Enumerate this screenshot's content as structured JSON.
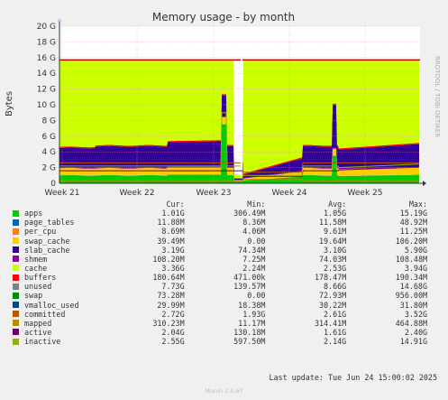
{
  "chart_data": {
    "type": "area",
    "title": "Memory usage - by month",
    "ylabel": "Bytes",
    "side_text": "RRDTOOL / TOBI OETIKER",
    "x_categories": [
      "Week 21",
      "Week 22",
      "Week 23",
      "Week 24",
      "Week 25"
    ],
    "y_ticks": [
      "0",
      "2 G",
      "4 G",
      "6 G",
      "8 G",
      "10 G",
      "12 G",
      "14 G",
      "16 G",
      "18 G",
      "20 G"
    ],
    "ylim": [
      0,
      20
    ],
    "y_unit": "G",
    "grid": true,
    "stacked": true,
    "legend_placement": "bottom",
    "legend_headers": [
      "Cur:",
      "Min:",
      "Avg:",
      "Max:"
    ],
    "series": [
      {
        "name": "apps",
        "color": "#00cc00",
        "cur": "1.01G",
        "min": "306.49M",
        "avg": "1.05G",
        "max": "15.19G"
      },
      {
        "name": "page_tables",
        "color": "#0066b3",
        "cur": "11.88M",
        "min": "8.36M",
        "avg": "11.58M",
        "max": "48.92M"
      },
      {
        "name": "per_cpu",
        "color": "#ff8000",
        "cur": "8.69M",
        "min": "4.06M",
        "avg": "9.61M",
        "max": "11.25M"
      },
      {
        "name": "swap_cache",
        "color": "#ffcc00",
        "cur": "39.49M",
        "min": "0.00",
        "avg": "19.64M",
        "max": "106.20M"
      },
      {
        "name": "slab_cache",
        "color": "#330099",
        "cur": "3.19G",
        "min": "74.34M",
        "avg": "3.10G",
        "max": "5.90G"
      },
      {
        "name": "shmem",
        "color": "#990099",
        "cur": "108.20M",
        "min": "7.25M",
        "avg": "74.03M",
        "max": "108.48M"
      },
      {
        "name": "cache",
        "color": "#ccff00",
        "cur": "3.36G",
        "min": "2.24M",
        "avg": "2.53G",
        "max": "3.94G"
      },
      {
        "name": "buffers",
        "color": "#ff0000",
        "cur": "180.64M",
        "min": "471.00k",
        "avg": "178.47M",
        "max": "190.34M"
      },
      {
        "name": "unused",
        "color": "#808080",
        "cur": "7.73G",
        "min": "139.57M",
        "avg": "8.66G",
        "max": "14.68G"
      },
      {
        "name": "swap",
        "color": "#008f00",
        "cur": "73.28M",
        "min": "0.00",
        "avg": "72.93M",
        "max": "956.00M"
      },
      {
        "name": "vmalloc_used",
        "color": "#00487d",
        "cur": "29.99M",
        "min": "18.38M",
        "avg": "30.22M",
        "max": "31.80M"
      },
      {
        "name": "committed",
        "color": "#b35a00",
        "cur": "2.72G",
        "min": "1.93G",
        "avg": "2.61G",
        "max": "3.52G"
      },
      {
        "name": "mapped",
        "color": "#b38f00",
        "cur": "310.23M",
        "min": "11.17M",
        "avg": "314.41M",
        "max": "464.88M"
      },
      {
        "name": "active",
        "color": "#6b006b",
        "cur": "2.04G",
        "min": "130.18M",
        "avg": "1.61G",
        "max": "2.40G"
      },
      {
        "name": "inactive",
        "color": "#8fb300",
        "cur": "2.55G",
        "min": "597.50M",
        "avg": "2.14G",
        "max": "14.91G"
      }
    ],
    "total_memory": 15.7
  },
  "footer": {
    "last_update": "Last update: Tue Jun 24 15:00:02 2025",
    "munin": "Munin 2.0.67"
  }
}
